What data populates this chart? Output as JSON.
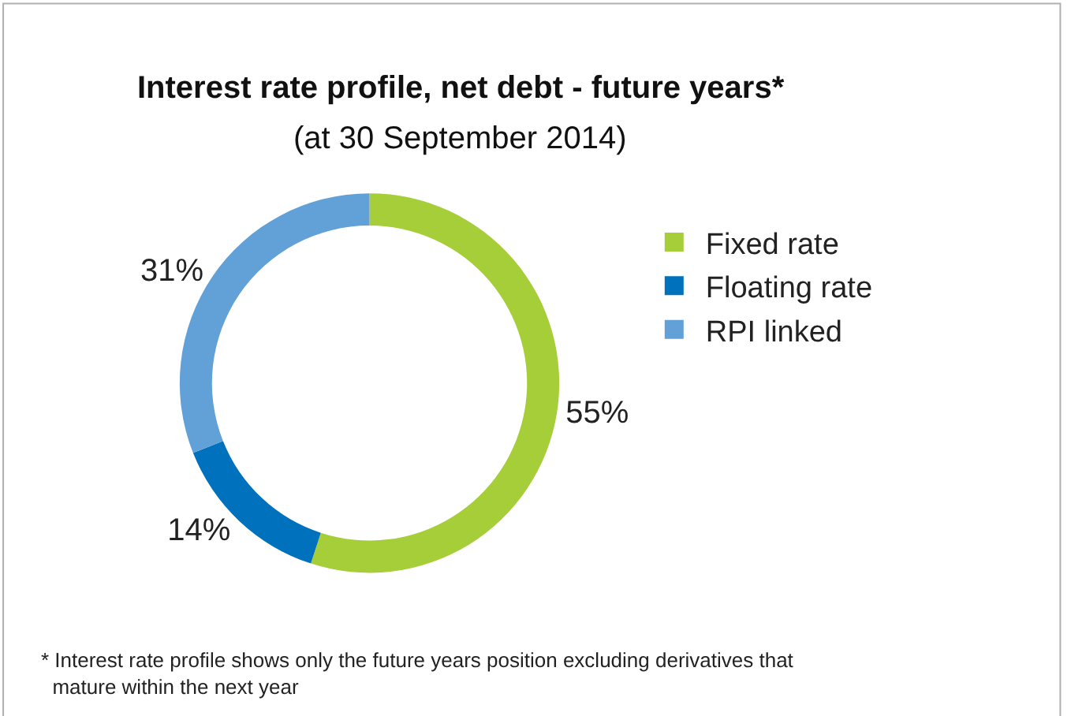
{
  "chart_data": {
    "type": "donut",
    "title": "Interest rate profile, net debt - future years*",
    "subtitle": "(at 30 September 2014)",
    "categories": [
      "Fixed rate",
      "Floating rate",
      "RPI linked"
    ],
    "values": [
      55,
      14,
      31
    ],
    "colors": [
      "#a6ce39",
      "#0071bc",
      "#62a0d8"
    ],
    "value_labels": [
      "55%",
      "14%",
      "31%"
    ],
    "legend": "right",
    "annotations": [
      "* Interest rate profile shows only the future years position excluding derivatives that mature within the next year"
    ]
  }
}
